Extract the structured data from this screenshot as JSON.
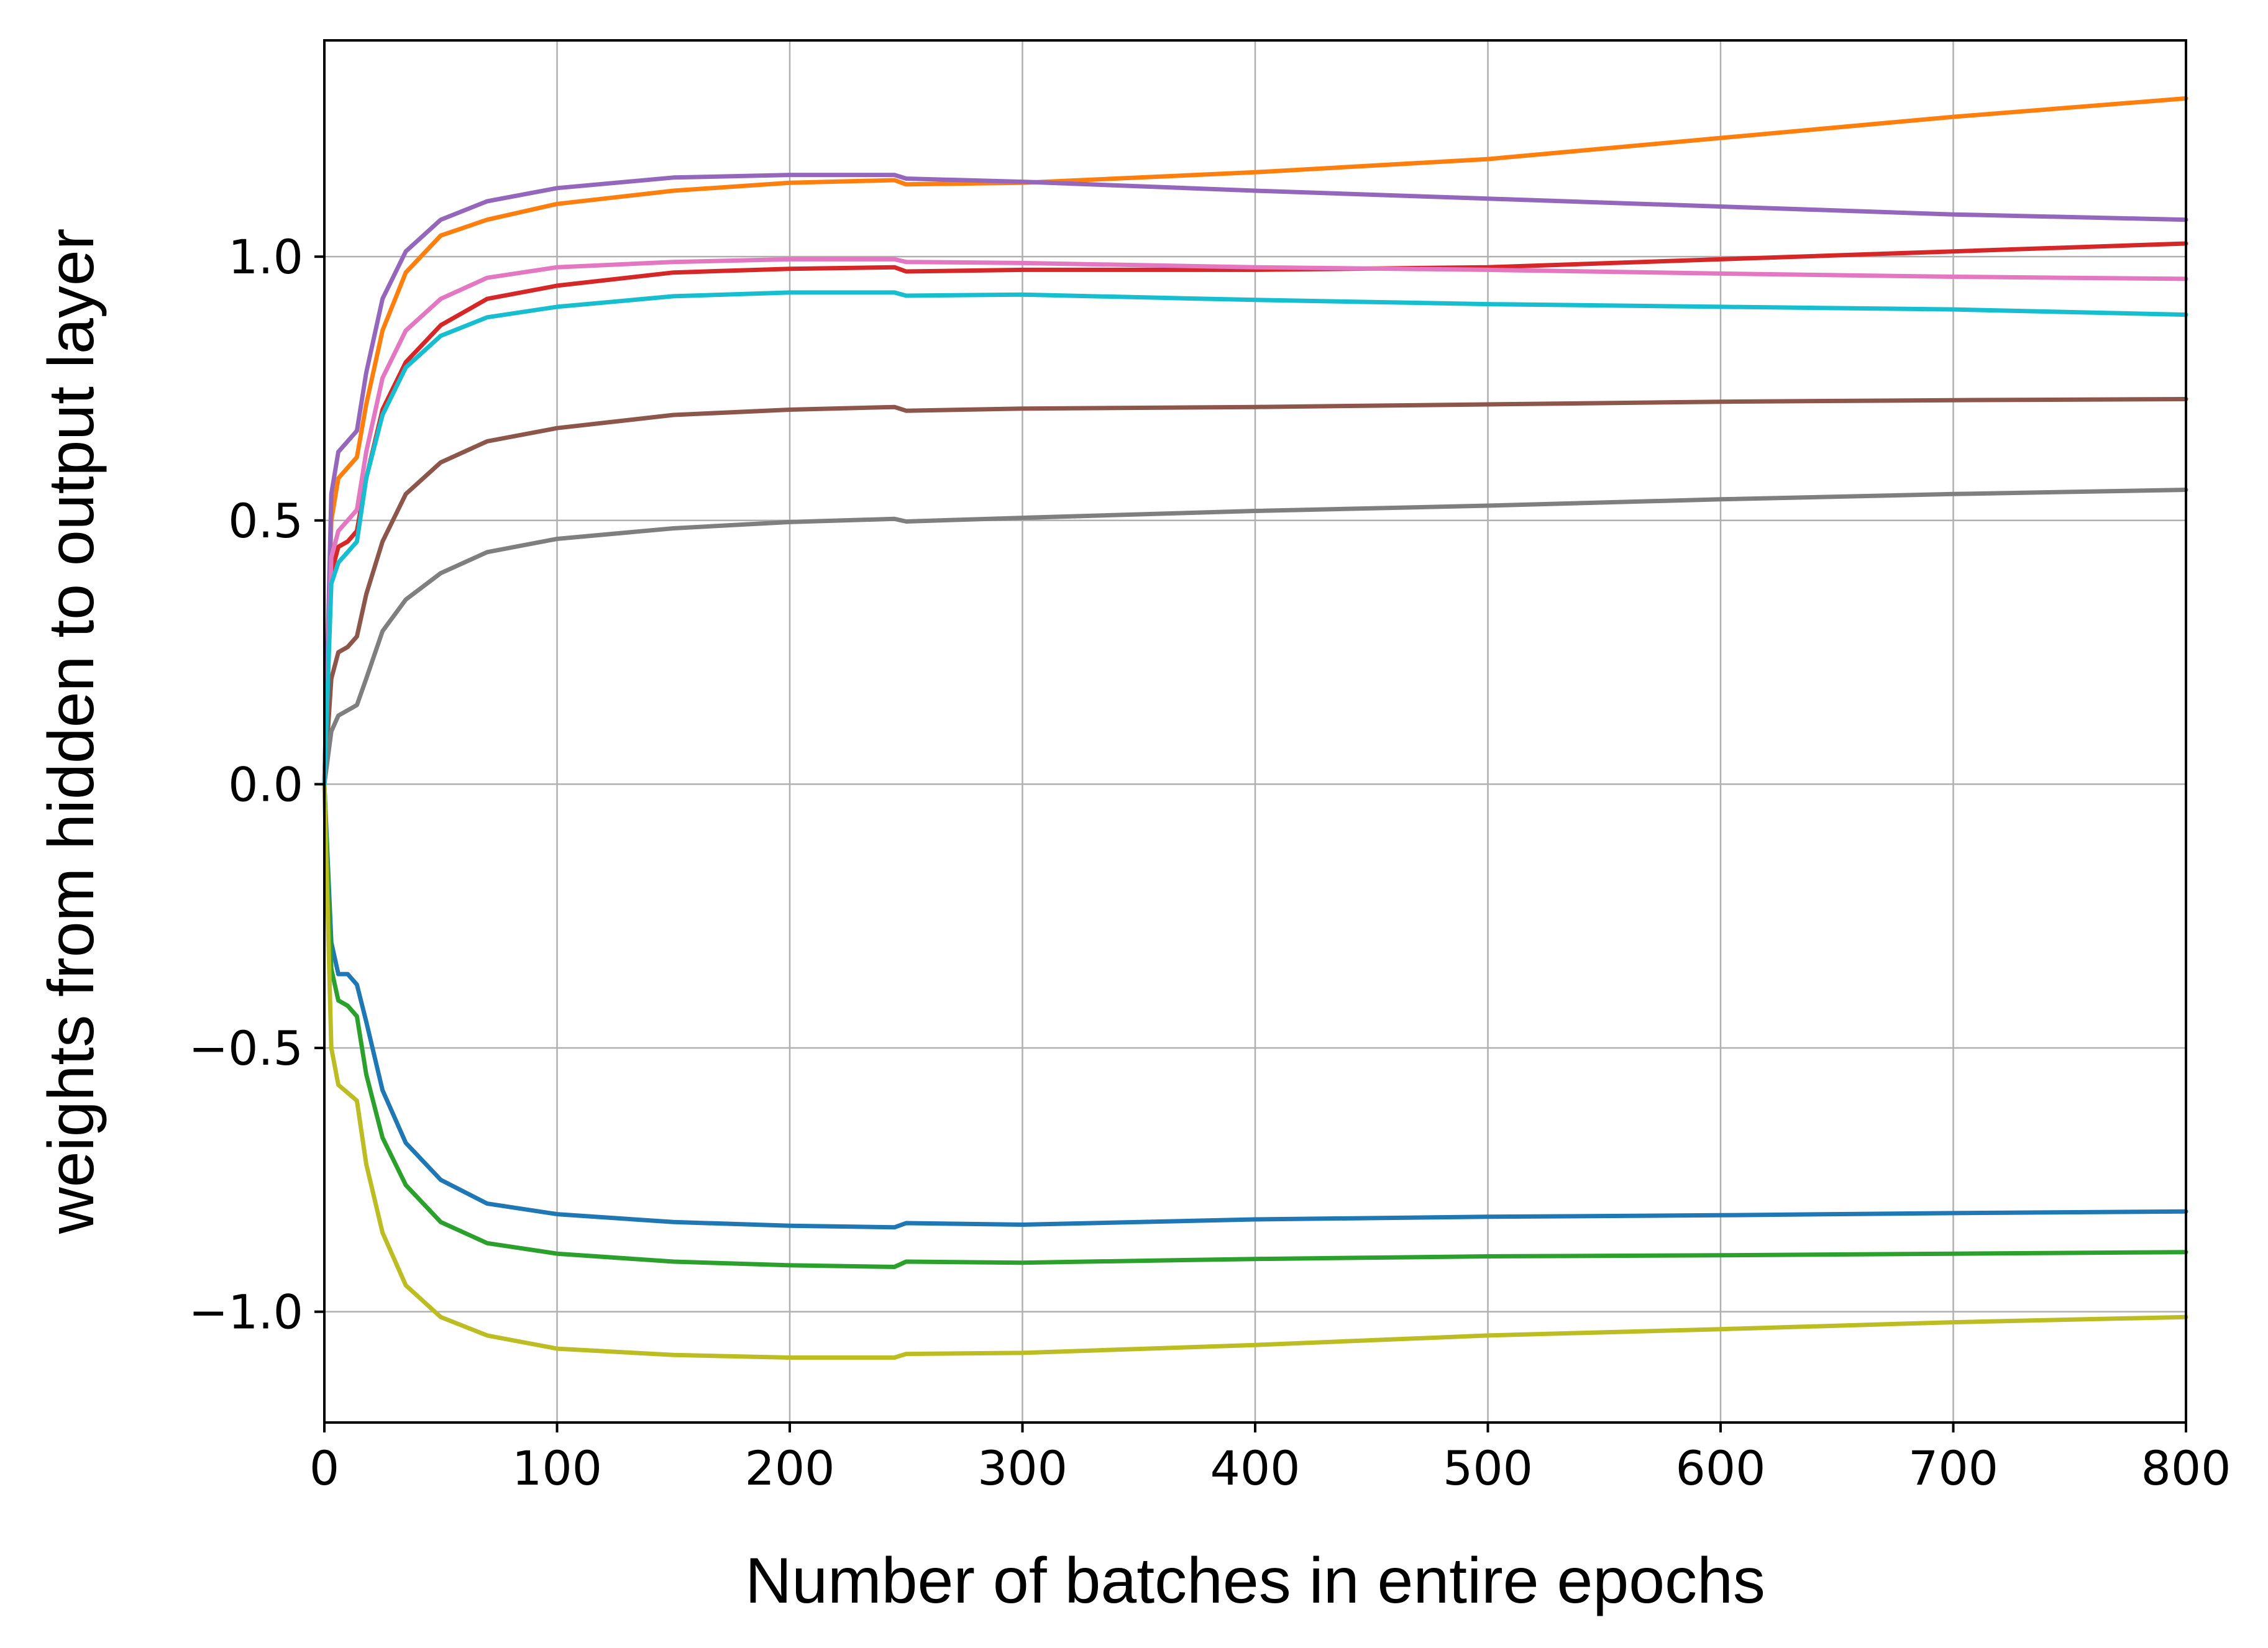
{
  "chart_data": {
    "type": "line",
    "xlabel": "Number of batches in entire epochs",
    "ylabel": "weights from hidden to output layer",
    "xlim": [
      0,
      800
    ],
    "ylim": [
      -1.21,
      1.41
    ],
    "grid": true,
    "x_ticks": [
      0,
      100,
      200,
      300,
      400,
      500,
      600,
      700,
      800
    ],
    "x_tick_labels": [
      "0",
      "100",
      "200",
      "300",
      "400",
      "500",
      "600",
      "700",
      "800"
    ],
    "y_ticks": [
      -1.0,
      -0.5,
      0.0,
      0.5,
      1.0
    ],
    "y_tick_labels": [
      "−1.0",
      "−0.5",
      "0.0",
      "0.5",
      "1.0"
    ],
    "series": [
      {
        "color": "#1f77b4",
        "points": [
          [
            0,
            0
          ],
          [
            3,
            -0.3
          ],
          [
            6,
            -0.36
          ],
          [
            10,
            -0.36
          ],
          [
            14,
            -0.38
          ],
          [
            18,
            -0.45
          ],
          [
            25,
            -0.58
          ],
          [
            35,
            -0.68
          ],
          [
            50,
            -0.75
          ],
          [
            70,
            -0.795
          ],
          [
            100,
            -0.815
          ],
          [
            150,
            -0.83
          ],
          [
            200,
            -0.837
          ],
          [
            245,
            -0.84
          ],
          [
            250,
            -0.832
          ],
          [
            300,
            -0.835
          ],
          [
            400,
            -0.825
          ],
          [
            500,
            -0.82
          ],
          [
            600,
            -0.817
          ],
          [
            700,
            -0.813
          ],
          [
            800,
            -0.81
          ]
        ]
      },
      {
        "color": "#ff7f0e",
        "points": [
          [
            0,
            0
          ],
          [
            3,
            0.5
          ],
          [
            6,
            0.58
          ],
          [
            10,
            0.6
          ],
          [
            14,
            0.62
          ],
          [
            18,
            0.72
          ],
          [
            25,
            0.86
          ],
          [
            35,
            0.97
          ],
          [
            50,
            1.04
          ],
          [
            70,
            1.07
          ],
          [
            100,
            1.1
          ],
          [
            150,
            1.125
          ],
          [
            200,
            1.14
          ],
          [
            245,
            1.145
          ],
          [
            250,
            1.137
          ],
          [
            300,
            1.14
          ],
          [
            400,
            1.16
          ],
          [
            500,
            1.185
          ],
          [
            600,
            1.225
          ],
          [
            700,
            1.265
          ],
          [
            800,
            1.3
          ]
        ]
      },
      {
        "color": "#2ca02c",
        "points": [
          [
            0,
            0
          ],
          [
            3,
            -0.35
          ],
          [
            6,
            -0.41
          ],
          [
            10,
            -0.42
          ],
          [
            14,
            -0.44
          ],
          [
            18,
            -0.55
          ],
          [
            25,
            -0.67
          ],
          [
            35,
            -0.76
          ],
          [
            50,
            -0.83
          ],
          [
            70,
            -0.87
          ],
          [
            100,
            -0.89
          ],
          [
            150,
            -0.905
          ],
          [
            200,
            -0.912
          ],
          [
            245,
            -0.915
          ],
          [
            250,
            -0.905
          ],
          [
            300,
            -0.907
          ],
          [
            400,
            -0.9
          ],
          [
            500,
            -0.895
          ],
          [
            600,
            -0.893
          ],
          [
            700,
            -0.89
          ],
          [
            800,
            -0.887
          ]
        ]
      },
      {
        "color": "#d62728",
        "points": [
          [
            0,
            0
          ],
          [
            3,
            0.4
          ],
          [
            6,
            0.45
          ],
          [
            10,
            0.46
          ],
          [
            14,
            0.48
          ],
          [
            18,
            0.58
          ],
          [
            25,
            0.71
          ],
          [
            35,
            0.8
          ],
          [
            50,
            0.87
          ],
          [
            70,
            0.92
          ],
          [
            100,
            0.945
          ],
          [
            150,
            0.97
          ],
          [
            200,
            0.977
          ],
          [
            245,
            0.98
          ],
          [
            250,
            0.972
          ],
          [
            300,
            0.975
          ],
          [
            400,
            0.975
          ],
          [
            500,
            0.98
          ],
          [
            600,
            0.995
          ],
          [
            700,
            1.01
          ],
          [
            800,
            1.025
          ]
        ]
      },
      {
        "color": "#9467bd",
        "points": [
          [
            0,
            0
          ],
          [
            3,
            0.55
          ],
          [
            6,
            0.63
          ],
          [
            10,
            0.65
          ],
          [
            14,
            0.67
          ],
          [
            18,
            0.78
          ],
          [
            25,
            0.92
          ],
          [
            35,
            1.01
          ],
          [
            50,
            1.07
          ],
          [
            70,
            1.105
          ],
          [
            100,
            1.13
          ],
          [
            150,
            1.15
          ],
          [
            200,
            1.155
          ],
          [
            245,
            1.155
          ],
          [
            250,
            1.148
          ],
          [
            300,
            1.142
          ],
          [
            400,
            1.125
          ],
          [
            500,
            1.11
          ],
          [
            600,
            1.095
          ],
          [
            700,
            1.08
          ],
          [
            800,
            1.07
          ]
        ]
      },
      {
        "color": "#8c564b",
        "points": [
          [
            0,
            0
          ],
          [
            3,
            0.2
          ],
          [
            6,
            0.25
          ],
          [
            10,
            0.26
          ],
          [
            14,
            0.28
          ],
          [
            18,
            0.36
          ],
          [
            25,
            0.46
          ],
          [
            35,
            0.55
          ],
          [
            50,
            0.61
          ],
          [
            70,
            0.65
          ],
          [
            100,
            0.675
          ],
          [
            150,
            0.7
          ],
          [
            200,
            0.71
          ],
          [
            245,
            0.715
          ],
          [
            250,
            0.708
          ],
          [
            300,
            0.712
          ],
          [
            400,
            0.715
          ],
          [
            500,
            0.72
          ],
          [
            600,
            0.725
          ],
          [
            700,
            0.728
          ],
          [
            800,
            0.73
          ]
        ]
      },
      {
        "color": "#e377c2",
        "points": [
          [
            0,
            0
          ],
          [
            3,
            0.43
          ],
          [
            6,
            0.48
          ],
          [
            10,
            0.5
          ],
          [
            14,
            0.52
          ],
          [
            18,
            0.63
          ],
          [
            25,
            0.77
          ],
          [
            35,
            0.86
          ],
          [
            50,
            0.92
          ],
          [
            70,
            0.96
          ],
          [
            100,
            0.98
          ],
          [
            150,
            0.99
          ],
          [
            200,
            0.995
          ],
          [
            245,
            0.995
          ],
          [
            250,
            0.99
          ],
          [
            300,
            0.988
          ],
          [
            400,
            0.98
          ],
          [
            500,
            0.975
          ],
          [
            600,
            0.968
          ],
          [
            700,
            0.962
          ],
          [
            800,
            0.958
          ]
        ]
      },
      {
        "color": "#7f7f7f",
        "points": [
          [
            0,
            0
          ],
          [
            3,
            0.1
          ],
          [
            6,
            0.13
          ],
          [
            10,
            0.14
          ],
          [
            14,
            0.15
          ],
          [
            18,
            0.2
          ],
          [
            25,
            0.29
          ],
          [
            35,
            0.35
          ],
          [
            50,
            0.4
          ],
          [
            70,
            0.44
          ],
          [
            100,
            0.465
          ],
          [
            150,
            0.485
          ],
          [
            200,
            0.497
          ],
          [
            245,
            0.503
          ],
          [
            250,
            0.498
          ],
          [
            300,
            0.505
          ],
          [
            400,
            0.518
          ],
          [
            500,
            0.528
          ],
          [
            600,
            0.54
          ],
          [
            700,
            0.55
          ],
          [
            800,
            0.558
          ]
        ]
      },
      {
        "color": "#bcbd22",
        "points": [
          [
            0,
            0
          ],
          [
            3,
            -0.5
          ],
          [
            6,
            -0.57
          ],
          [
            10,
            -0.585
          ],
          [
            14,
            -0.6
          ],
          [
            18,
            -0.72
          ],
          [
            25,
            -0.85
          ],
          [
            35,
            -0.95
          ],
          [
            50,
            -1.01
          ],
          [
            70,
            -1.045
          ],
          [
            100,
            -1.07
          ],
          [
            150,
            -1.082
          ],
          [
            200,
            -1.087
          ],
          [
            245,
            -1.087
          ],
          [
            250,
            -1.08
          ],
          [
            300,
            -1.078
          ],
          [
            400,
            -1.063
          ],
          [
            500,
            -1.045
          ],
          [
            600,
            -1.033
          ],
          [
            700,
            -1.02
          ],
          [
            800,
            -1.01
          ]
        ]
      },
      {
        "color": "#17becf",
        "points": [
          [
            0,
            0
          ],
          [
            3,
            0.38
          ],
          [
            6,
            0.42
          ],
          [
            10,
            0.44
          ],
          [
            14,
            0.46
          ],
          [
            18,
            0.58
          ],
          [
            25,
            0.7
          ],
          [
            35,
            0.79
          ],
          [
            50,
            0.85
          ],
          [
            70,
            0.885
          ],
          [
            100,
            0.905
          ],
          [
            150,
            0.925
          ],
          [
            200,
            0.932
          ],
          [
            245,
            0.932
          ],
          [
            250,
            0.926
          ],
          [
            300,
            0.928
          ],
          [
            400,
            0.918
          ],
          [
            500,
            0.91
          ],
          [
            600,
            0.905
          ],
          [
            700,
            0.9
          ],
          [
            800,
            0.89
          ]
        ]
      }
    ]
  }
}
